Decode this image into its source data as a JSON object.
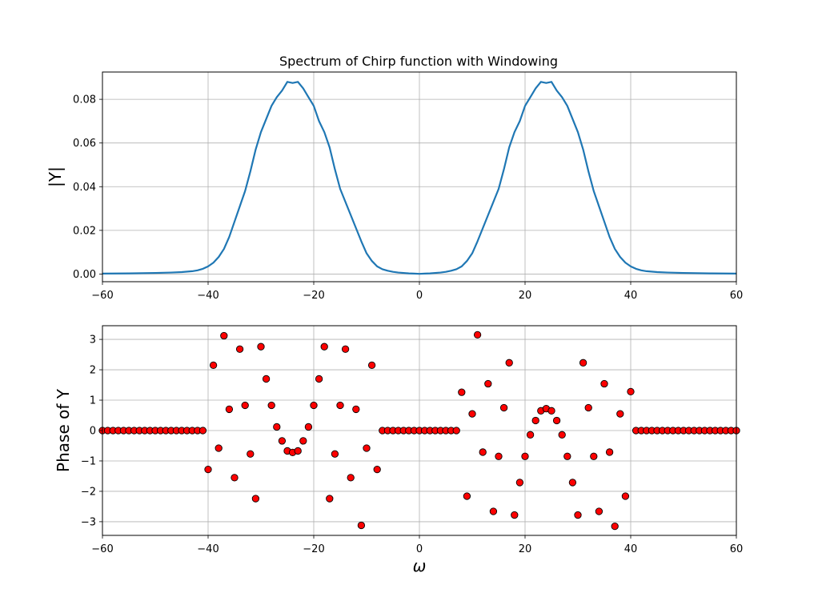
{
  "figure": {
    "title": "Spectrum of Chirp function with Windowing",
    "colors": {
      "line": "#1f77b4",
      "marker_face": "#ff0000",
      "marker_edge": "#000000",
      "grid": "#b0b0b0"
    }
  },
  "chart_data": [
    {
      "type": "line",
      "title": "Spectrum of Chirp function with Windowing",
      "xlabel": "",
      "ylabel": "|Y|",
      "xlim": [
        -60,
        60
      ],
      "ylim": [
        -0.0035,
        0.0925
      ],
      "grid": true,
      "xticks": [
        -60,
        -40,
        -20,
        0,
        20,
        40,
        60
      ],
      "yticks": [
        0.0,
        0.02,
        0.04,
        0.06,
        0.08
      ],
      "xtick_labels": [
        "−60",
        "−40",
        "−20",
        "0",
        "20",
        "40",
        "60"
      ],
      "ytick_labels": [
        "0.00",
        "0.02",
        "0.04",
        "0.06",
        "0.08"
      ],
      "series": [
        {
          "color": "#1f77b4",
          "x": [
            -60,
            -55,
            -50,
            -47,
            -45,
            -43,
            -42,
            -41,
            -40,
            -39,
            -38,
            -37,
            -36,
            -35,
            -34,
            -33,
            -32,
            -31,
            -30,
            -29,
            -28,
            -27,
            -26,
            -25,
            -24,
            -23,
            -22,
            -21,
            -20,
            -19,
            -18,
            -17,
            -16,
            -15,
            -14,
            -13,
            -12,
            -11,
            -10,
            -9,
            -8,
            -7,
            -6,
            -5,
            -4,
            -3,
            -2,
            -1,
            0,
            1,
            2,
            3,
            4,
            5,
            6,
            7,
            8,
            9,
            10,
            11,
            12,
            13,
            14,
            15,
            16,
            17,
            18,
            19,
            20,
            21,
            22,
            23,
            24,
            25,
            26,
            27,
            28,
            29,
            30,
            31,
            32,
            33,
            34,
            35,
            36,
            37,
            38,
            39,
            40,
            41,
            42,
            43,
            45,
            47,
            50,
            55,
            60
          ],
          "y": [
            0.0002,
            0.0003,
            0.0005,
            0.0007,
            0.0009,
            0.0013,
            0.0017,
            0.0024,
            0.0035,
            0.0052,
            0.0078,
            0.0115,
            0.017,
            0.024,
            0.031,
            0.038,
            0.047,
            0.057,
            0.065,
            0.071,
            0.077,
            0.081,
            0.084,
            0.088,
            0.0875,
            0.088,
            0.085,
            0.081,
            0.077,
            0.07,
            0.065,
            0.058,
            0.048,
            0.039,
            0.033,
            0.027,
            0.021,
            0.015,
            0.0095,
            0.006,
            0.0035,
            0.0022,
            0.0015,
            0.001,
            0.0007,
            0.0005,
            0.0003,
            0.0002,
            0.0001,
            0.0002,
            0.0003,
            0.0005,
            0.0007,
            0.001,
            0.0015,
            0.0022,
            0.0035,
            0.006,
            0.0095,
            0.015,
            0.021,
            0.027,
            0.033,
            0.039,
            0.048,
            0.058,
            0.065,
            0.07,
            0.077,
            0.081,
            0.085,
            0.088,
            0.0875,
            0.088,
            0.084,
            0.081,
            0.077,
            0.071,
            0.065,
            0.057,
            0.047,
            0.038,
            0.031,
            0.024,
            0.017,
            0.0115,
            0.0078,
            0.0052,
            0.0035,
            0.0024,
            0.0017,
            0.0013,
            0.0009,
            0.0007,
            0.0005,
            0.0003,
            0.0002
          ]
        }
      ]
    },
    {
      "type": "scatter",
      "title": "",
      "xlabel": "ω",
      "ylabel": "Phase of Y",
      "xlim": [
        -60,
        60
      ],
      "ylim": [
        -3.45,
        3.45
      ],
      "grid": true,
      "xticks": [
        -60,
        -40,
        -20,
        0,
        20,
        40,
        60
      ],
      "yticks": [
        -3,
        -2,
        -1,
        0,
        1,
        2,
        3
      ],
      "xtick_labels": [
        "−60",
        "−40",
        "−20",
        "0",
        "20",
        "40",
        "60"
      ],
      "ytick_labels": [
        "−3",
        "−2",
        "−1",
        "0",
        "1",
        "2",
        "3"
      ],
      "series": [
        {
          "color": "#ff0000",
          "x": [
            -60,
            -59,
            -58,
            -57,
            -56,
            -55,
            -54,
            -53,
            -52,
            -51,
            -50,
            -49,
            -48,
            -47,
            -46,
            -45,
            -44,
            -43,
            -42,
            -41,
            -40,
            -39,
            -38,
            -37,
            -36,
            -35,
            -34,
            -33,
            -32,
            -31,
            -30,
            -29,
            -28,
            -27,
            -26,
            -25,
            -24,
            -23,
            -22,
            -21,
            -20,
            -19,
            -18,
            -17,
            -16,
            -15,
            -14,
            -13,
            -12,
            -11,
            -10,
            -9,
            -8,
            -7,
            -6,
            -5,
            -4,
            -3,
            -2,
            -1,
            0,
            1,
            2,
            3,
            4,
            5,
            6,
            7,
            8,
            9,
            10,
            11,
            12,
            13,
            14,
            15,
            16,
            17,
            18,
            19,
            20,
            21,
            22,
            23,
            24,
            25,
            26,
            27,
            28,
            29,
            30,
            31,
            32,
            33,
            34,
            35,
            36,
            37,
            38,
            39,
            40,
            41,
            42,
            43,
            44,
            45,
            46,
            47,
            48,
            49,
            50,
            51,
            52,
            53,
            54,
            55,
            56,
            57,
            58,
            59,
            60
          ],
          "y": [
            0,
            0,
            0,
            0,
            0,
            0,
            0,
            0,
            0,
            0,
            0,
            0,
            0,
            0,
            0,
            0,
            0,
            0,
            0,
            0,
            -1.28,
            2.15,
            -0.58,
            3.12,
            0.7,
            -1.55,
            2.68,
            0.83,
            -0.77,
            -2.24,
            2.76,
            1.7,
            0.83,
            0.12,
            -0.34,
            -0.67,
            -0.72,
            -0.67,
            -0.34,
            0.12,
            0.83,
            1.7,
            2.76,
            -2.24,
            -0.77,
            0.83,
            2.68,
            -1.55,
            0.7,
            -3.12,
            -0.58,
            2.15,
            -1.28,
            0,
            0,
            0,
            0,
            0,
            0,
            0,
            0,
            0,
            0,
            0,
            0,
            0,
            0,
            0,
            1.26,
            -2.16,
            0.55,
            3.15,
            -0.71,
            1.54,
            -2.66,
            -0.85,
            0.75,
            2.23,
            -2.78,
            -1.71,
            -0.85,
            -0.14,
            0.33,
            0.65,
            0.72,
            0.65,
            0.33,
            -0.14,
            -0.85,
            -1.71,
            -2.78,
            2.23,
            0.75,
            -0.85,
            -2.66,
            1.54,
            -0.71,
            -3.15,
            0.55,
            -2.16,
            1.28,
            0,
            0,
            0,
            0,
            0,
            0,
            0,
            0,
            0,
            0,
            0,
            0,
            0,
            0,
            0,
            0,
            0,
            0,
            0,
            0
          ]
        }
      ]
    }
  ]
}
